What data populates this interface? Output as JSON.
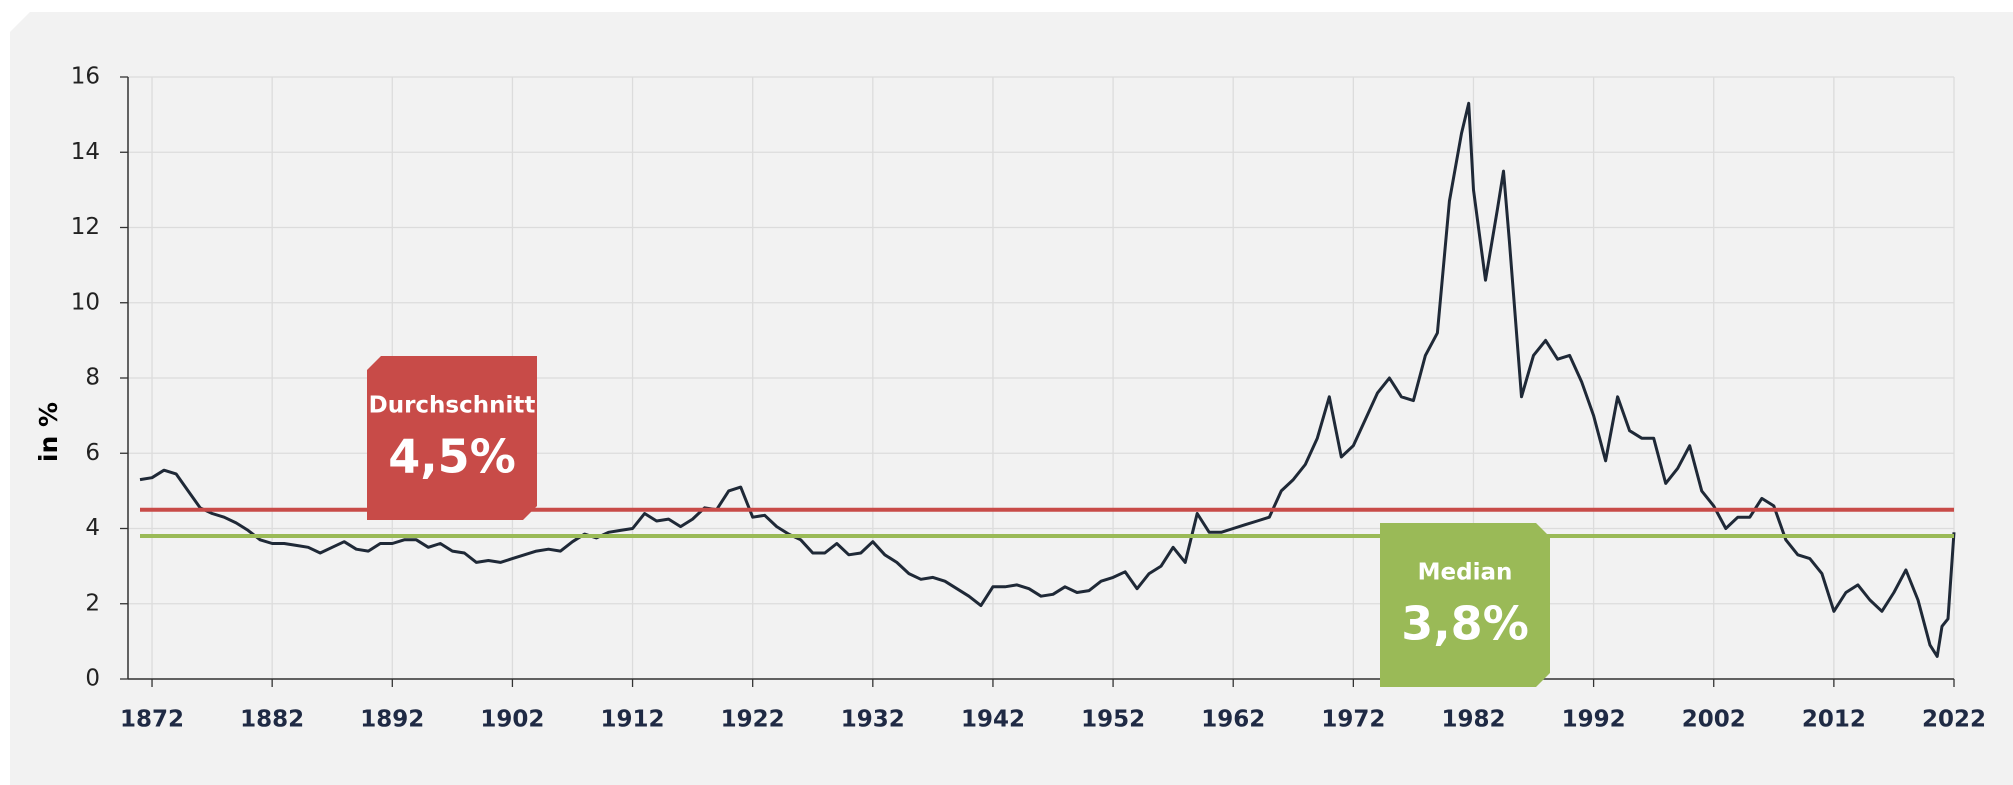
{
  "chart_data": {
    "type": "line",
    "y_label": "in %",
    "color": "#1f2937",
    "xlim": [
      1870,
      2022
    ],
    "xticks": [
      1872,
      1882,
      1892,
      1902,
      1912,
      1922,
      1932,
      1942,
      1952,
      1962,
      1972,
      1982,
      1992,
      2002,
      2012,
      2022
    ],
    "ylim": [
      0,
      16
    ],
    "yticks": [
      0,
      2,
      4,
      6,
      8,
      10,
      12,
      14,
      16
    ],
    "grid": true,
    "x": [
      1871,
      1872,
      1873,
      1874,
      1875,
      1876,
      1877,
      1878,
      1879,
      1880,
      1881,
      1882,
      1883,
      1884,
      1885,
      1886,
      1887,
      1888,
      1889,
      1890,
      1891,
      1892,
      1893,
      1894,
      1895,
      1896,
      1897,
      1898,
      1899,
      1900,
      1901,
      1902,
      1903,
      1904,
      1905,
      1906,
      1907,
      1908,
      1909,
      1910,
      1911,
      1912,
      1913,
      1914,
      1915,
      1916,
      1917,
      1918,
      1919,
      1920,
      1921,
      1922,
      1923,
      1924,
      1925,
      1926,
      1927,
      1928,
      1929,
      1930,
      1931,
      1932,
      1933,
      1934,
      1935,
      1936,
      1937,
      1938,
      1939,
      1940,
      1941,
      1942,
      1943,
      1944,
      1945,
      1946,
      1947,
      1948,
      1949,
      1950,
      1951,
      1952,
      1953,
      1954,
      1955,
      1956,
      1957,
      1958,
      1959,
      1960,
      1961,
      1962,
      1963,
      1964,
      1965,
      1966,
      1967,
      1968,
      1969,
      1970,
      1971,
      1972,
      1973,
      1974,
      1975,
      1976,
      1977,
      1978,
      1979,
      1980,
      1981,
      1981.6,
      1982,
      1983,
      1984,
      1984.5,
      1985,
      1986,
      1987,
      1988,
      1989,
      1990,
      1991,
      1992,
      1993,
      1994,
      1995,
      1996,
      1997,
      1998,
      1999,
      2000,
      2001,
      2002,
      2003,
      2004,
      2005,
      2006,
      2007,
      2008,
      2009,
      2010,
      2011,
      2012,
      2013,
      2014,
      2015,
      2016,
      2017,
      2018,
      2019,
      2020,
      2020.6,
      2021,
      2021.5,
      2022
    ],
    "values": [
      5.3,
      5.35,
      5.55,
      5.45,
      5.0,
      4.55,
      4.4,
      4.3,
      4.15,
      3.95,
      3.7,
      3.6,
      3.6,
      3.55,
      3.5,
      3.35,
      3.5,
      3.65,
      3.45,
      3.4,
      3.6,
      3.6,
      3.7,
      3.7,
      3.5,
      3.6,
      3.4,
      3.35,
      3.1,
      3.15,
      3.1,
      3.2,
      3.3,
      3.4,
      3.45,
      3.4,
      3.65,
      3.85,
      3.75,
      3.9,
      3.95,
      4.0,
      4.4,
      4.2,
      4.25,
      4.05,
      4.25,
      4.55,
      4.5,
      5.0,
      5.1,
      4.3,
      4.35,
      4.05,
      3.85,
      3.7,
      3.35,
      3.35,
      3.6,
      3.3,
      3.35,
      3.65,
      3.3,
      3.1,
      2.8,
      2.65,
      2.7,
      2.6,
      2.4,
      2.2,
      1.95,
      2.45,
      2.45,
      2.5,
      2.4,
      2.2,
      2.25,
      2.45,
      2.3,
      2.35,
      2.6,
      2.7,
      2.85,
      2.4,
      2.8,
      3.0,
      3.5,
      3.1,
      4.4,
      3.9,
      3.9,
      4.0,
      4.1,
      4.2,
      4.3,
      5.0,
      5.3,
      5.7,
      6.4,
      7.5,
      5.9,
      6.2,
      6.9,
      7.6,
      8.0,
      7.5,
      7.4,
      8.6,
      9.2,
      12.7,
      14.5,
      15.3,
      13.0,
      10.6,
      12.5,
      13.5,
      11.6,
      7.5,
      8.6,
      9.0,
      8.5,
      8.6,
      7.9,
      7.0,
      5.8,
      7.5,
      6.6,
      6.4,
      6.4,
      5.2,
      5.6,
      6.2,
      5.0,
      4.6,
      4.0,
      4.3,
      4.3,
      4.8,
      4.6,
      3.7,
      3.3,
      3.2,
      2.8,
      1.8,
      2.3,
      2.5,
      2.1,
      1.8,
      2.3,
      2.9,
      2.1,
      0.9,
      0.6,
      1.4,
      1.6,
      3.9
    ],
    "reference_lines": [
      {
        "name": "Durchschnitt",
        "value": 4.5,
        "label": "4,5%",
        "color": "#c84b48"
      },
      {
        "name": "Median",
        "value": 3.8,
        "label": "3,8%",
        "color": "#9aba57"
      }
    ]
  }
}
